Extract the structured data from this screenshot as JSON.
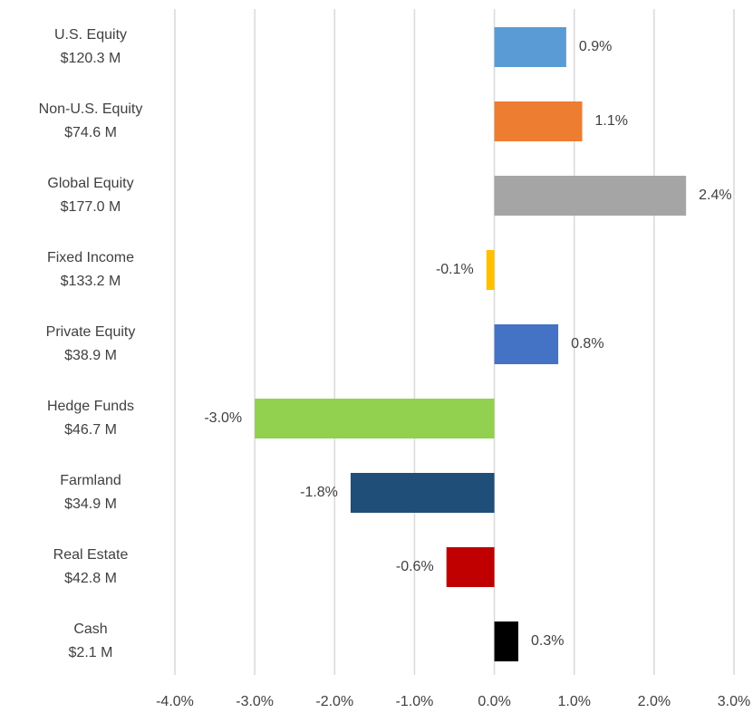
{
  "chart_data": {
    "type": "hbar",
    "categories": [
      [
        "U.S. Equity",
        "$120.3 M"
      ],
      [
        "Non-U.S. Equity",
        "$74.6 M"
      ],
      [
        "Global Equity",
        "$177.0 M"
      ],
      [
        "Fixed Income",
        "$133.2 M"
      ],
      [
        "Private Equity",
        "$38.9 M"
      ],
      [
        "Hedge Funds",
        "$46.7 M"
      ],
      [
        "Farmland",
        "$34.9 M"
      ],
      [
        "Real Estate",
        "$42.8 M"
      ],
      [
        "Cash",
        "$2.1 M"
      ]
    ],
    "values": [
      0.9,
      1.1,
      2.4,
      -0.1,
      0.8,
      -3.0,
      -1.8,
      -0.6,
      0.3
    ],
    "value_labels": [
      "0.9%",
      "1.1%",
      "2.4%",
      "-0.1%",
      "0.8%",
      "-3.0%",
      "-1.8%",
      "-0.6%",
      "0.3%"
    ],
    "colors": [
      "#5b9bd5",
      "#ed7d31",
      "#a5a5a5",
      "#ffc000",
      "#4472c4",
      "#92d050",
      "#1f4e79",
      "#c00000",
      "#000000"
    ],
    "xlim": [
      -4,
      3
    ],
    "xticks": [
      {
        "value": -4,
        "label": "-4.0%"
      },
      {
        "value": -3,
        "label": "-3.0%"
      },
      {
        "value": -2,
        "label": "-2.0%"
      },
      {
        "value": -1,
        "label": "-1.0%"
      },
      {
        "value": 0,
        "label": "0.0%"
      },
      {
        "value": 1,
        "label": "1.0%"
      },
      {
        "value": 2,
        "label": "2.0%"
      },
      {
        "value": 3,
        "label": "3.0%"
      }
    ],
    "grid": true
  }
}
